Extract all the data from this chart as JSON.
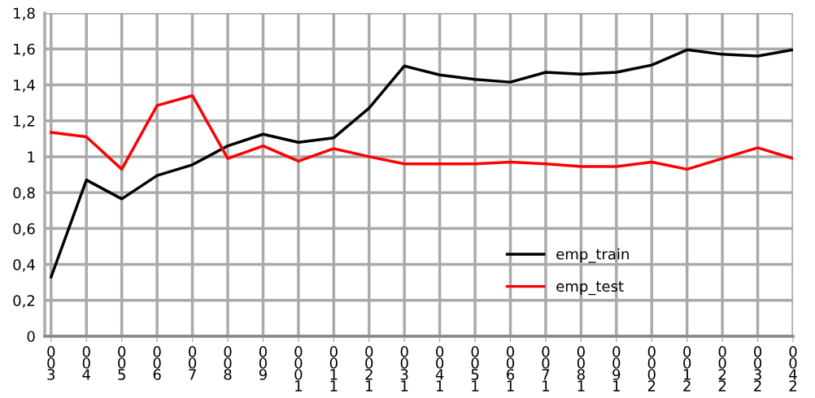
{
  "chart_data": {
    "type": "line",
    "categories": [
      "003",
      "004",
      "005",
      "006",
      "007",
      "008",
      "009",
      "0001",
      "0011",
      "0021",
      "0031",
      "0041",
      "0051",
      "0061",
      "0071",
      "0081",
      "0091",
      "0002",
      "0012",
      "0022",
      "0032",
      "0042"
    ],
    "series": [
      {
        "name": "emp_train",
        "color": "#000000",
        "values": [
          0.33,
          0.87,
          0.765,
          0.895,
          0.955,
          1.06,
          1.125,
          1.08,
          1.105,
          1.27,
          1.505,
          1.455,
          1.43,
          1.415,
          1.47,
          1.46,
          1.47,
          1.51,
          1.595,
          1.57,
          1.56,
          1.595
        ]
      },
      {
        "name": "emp_test",
        "color": "#ff0000",
        "values": [
          1.135,
          1.11,
          0.93,
          1.285,
          1.34,
          0.99,
          1.06,
          0.975,
          1.045,
          1.0,
          0.96,
          0.96,
          0.96,
          0.97,
          0.96,
          0.945,
          0.945,
          0.97,
          0.93,
          0.99,
          1.05,
          0.99
        ]
      }
    ],
    "ylim": [
      0,
      1.8
    ],
    "yticks": [
      0,
      {
        "value": 0.2,
        "label": "0,2"
      },
      {
        "value": 0.4,
        "label": "0,4"
      },
      {
        "value": 0.6,
        "label": "0,6"
      },
      {
        "value": 0.8,
        "label": "0,8"
      },
      1,
      {
        "value": 1.2,
        "label": "1,2"
      },
      {
        "value": 1.4,
        "label": "1,4"
      },
      {
        "value": 1.6,
        "label": "1,6"
      },
      {
        "value": 1.8,
        "label": "1,8"
      }
    ],
    "grid": true,
    "legend": "bottom right",
    "marker": "none",
    "line_style": "solid"
  }
}
